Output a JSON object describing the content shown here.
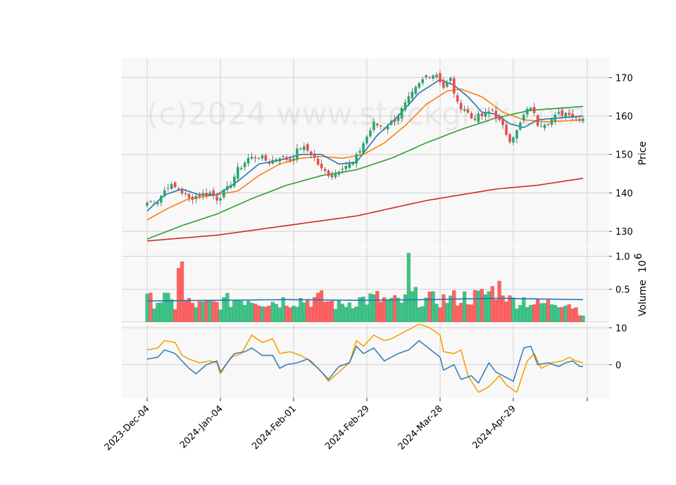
{
  "watermark": "(c)2024 www.stockgrok.com",
  "chart_data": {
    "type": "candlestick",
    "title": "",
    "x_tick_labels": [
      "2023-Dec-04",
      "2024-Jan-04",
      "2024-Feb-01",
      "2024-Feb-29",
      "2024-Mar-28",
      "2024-Apr-29"
    ],
    "x_tick_index": [
      0,
      21,
      42,
      63,
      84,
      105
    ],
    "num_sessions": 126,
    "colors": {
      "up": "#26a96c",
      "down": "#f04a4a",
      "ma10": "#1f77b4",
      "ma20": "#ff7f0e",
      "ma50": "#2ca02c",
      "ma200": "#d62728",
      "vol_ma": "#1f77b4",
      "osc_fast": "#3a7fb4",
      "osc_slow": "#f5a300"
    },
    "price_panel": {
      "ylabel": "Price",
      "ylim": [
        126,
        175
      ],
      "yticks": [
        130,
        140,
        150,
        160,
        170
      ]
    },
    "volume_panel": {
      "ylabel": "Volume",
      "exponent": "10",
      "exponent_power": "6",
      "ylim": [
        0,
        1.05
      ],
      "yticks": [
        0.5,
        1.0
      ],
      "ytick_labels": [
        "0.5",
        "1.0"
      ]
    },
    "oscillator_panel": {
      "ylim": [
        -9,
        11
      ],
      "yticks": [
        0,
        10
      ],
      "ytick_labels": [
        "0",
        "10"
      ]
    },
    "close_keypoints": [
      [
        0,
        137.5
      ],
      [
        3,
        138
      ],
      [
        6,
        142
      ],
      [
        9,
        141
      ],
      [
        12,
        138.5
      ],
      [
        15,
        139.5
      ],
      [
        18,
        140
      ],
      [
        20,
        138.5
      ],
      [
        23,
        141
      ],
      [
        26,
        146
      ],
      [
        29,
        149
      ],
      [
        32,
        149.5
      ],
      [
        35,
        148
      ],
      [
        38,
        149.5
      ],
      [
        41,
        148.5
      ],
      [
        44,
        152
      ],
      [
        47,
        150.5
      ],
      [
        50,
        146
      ],
      [
        53,
        144.5
      ],
      [
        56,
        147
      ],
      [
        59,
        147.5
      ],
      [
        62,
        153
      ],
      [
        65,
        158
      ],
      [
        68,
        157
      ],
      [
        71,
        159
      ],
      [
        74,
        163
      ],
      [
        77,
        167
      ],
      [
        80,
        170.5
      ],
      [
        83,
        171
      ],
      [
        85,
        167.5
      ],
      [
        87,
        169.5
      ],
      [
        89,
        163
      ],
      [
        91,
        162
      ],
      [
        93,
        159.5
      ],
      [
        96,
        160
      ],
      [
        99,
        161.5
      ],
      [
        102,
        157
      ],
      [
        104,
        154
      ],
      [
        106,
        156
      ],
      [
        108,
        160
      ],
      [
        110,
        162.5
      ],
      [
        112,
        158
      ],
      [
        115,
        158.5
      ],
      [
        118,
        160.5
      ],
      [
        121,
        161
      ],
      [
        123,
        159.5
      ],
      [
        125,
        159.5
      ]
    ],
    "ma_keypoints": {
      "ma10": [
        [
          0,
          135.3
        ],
        [
          5,
          139.5
        ],
        [
          10,
          141
        ],
        [
          15,
          139.5
        ],
        [
          20,
          139.5
        ],
        [
          26,
          143
        ],
        [
          32,
          147.5
        ],
        [
          38,
          148.5
        ],
        [
          44,
          150
        ],
        [
          50,
          150
        ],
        [
          55,
          147.5
        ],
        [
          60,
          148
        ],
        [
          66,
          155
        ],
        [
          72,
          160
        ],
        [
          78,
          166
        ],
        [
          84,
          169.5
        ],
        [
          88,
          168
        ],
        [
          92,
          165
        ],
        [
          96,
          161
        ],
        [
          100,
          160.5
        ],
        [
          104,
          158
        ],
        [
          108,
          157
        ],
        [
          112,
          159
        ],
        [
          118,
          159.5
        ],
        [
          125,
          160
        ]
      ],
      "ma20": [
        [
          0,
          133
        ],
        [
          6,
          136
        ],
        [
          12,
          138.5
        ],
        [
          20,
          139.5
        ],
        [
          26,
          140.5
        ],
        [
          32,
          144.5
        ],
        [
          38,
          147.5
        ],
        [
          44,
          149
        ],
        [
          50,
          149.5
        ],
        [
          56,
          149
        ],
        [
          62,
          150
        ],
        [
          68,
          153
        ],
        [
          74,
          157.5
        ],
        [
          80,
          163
        ],
        [
          86,
          166.5
        ],
        [
          90,
          167
        ],
        [
          96,
          165
        ],
        [
          102,
          161
        ],
        [
          108,
          159
        ],
        [
          115,
          158.5
        ],
        [
          125,
          159
        ]
      ],
      "ma50": [
        [
          0,
          128
        ],
        [
          10,
          131.5
        ],
        [
          20,
          134.5
        ],
        [
          30,
          138.5
        ],
        [
          40,
          142
        ],
        [
          50,
          144.5
        ],
        [
          60,
          146
        ],
        [
          70,
          149
        ],
        [
          80,
          153
        ],
        [
          90,
          156.5
        ],
        [
          100,
          159.5
        ],
        [
          110,
          161.5
        ],
        [
          118,
          162
        ],
        [
          125,
          162.5
        ]
      ],
      "ma200": [
        [
          0,
          127.5
        ],
        [
          20,
          129
        ],
        [
          40,
          131.5
        ],
        [
          60,
          134
        ],
        [
          80,
          138
        ],
        [
          100,
          141
        ],
        [
          112,
          142
        ],
        [
          125,
          143.8
        ]
      ]
    },
    "volume_keypoints": [
      [
        0,
        0.32
      ],
      [
        5,
        0.35
      ],
      [
        8,
        0.25
      ],
      [
        9,
        0.82
      ],
      [
        10,
        0.92
      ],
      [
        11,
        0.3
      ],
      [
        15,
        0.25
      ],
      [
        20,
        0.28
      ],
      [
        26,
        0.35
      ],
      [
        30,
        0.36
      ],
      [
        35,
        0.3
      ],
      [
        40,
        0.33
      ],
      [
        45,
        0.34
      ],
      [
        50,
        0.35
      ],
      [
        55,
        0.25
      ],
      [
        60,
        0.33
      ],
      [
        66,
        0.36
      ],
      [
        70,
        0.3
      ],
      [
        74,
        0.32
      ],
      [
        75,
        1.05
      ],
      [
        76,
        0.4
      ],
      [
        80,
        0.33
      ],
      [
        85,
        0.34
      ],
      [
        90,
        0.37
      ],
      [
        95,
        0.38
      ],
      [
        98,
        0.45
      ],
      [
        100,
        0.5
      ],
      [
        102,
        0.55
      ],
      [
        104,
        0.32
      ],
      [
        108,
        0.34
      ],
      [
        112,
        0.26
      ],
      [
        116,
        0.3
      ],
      [
        120,
        0.33
      ],
      [
        125,
        0.12
      ]
    ],
    "volume_ma_keypoints": [
      [
        0,
        0.32
      ],
      [
        20,
        0.33
      ],
      [
        40,
        0.34
      ],
      [
        60,
        0.33
      ],
      [
        80,
        0.34
      ],
      [
        100,
        0.36
      ],
      [
        125,
        0.34
      ]
    ],
    "oscillator_fast_keypoints": [
      [
        0,
        1.5
      ],
      [
        3,
        2
      ],
      [
        5,
        4
      ],
      [
        8,
        3
      ],
      [
        12,
        -1
      ],
      [
        14,
        -2.5
      ],
      [
        17,
        0
      ],
      [
        20,
        1
      ],
      [
        21,
        -2
      ],
      [
        23,
        0.5
      ],
      [
        25,
        3
      ],
      [
        28,
        3.5
      ],
      [
        30,
        4.5
      ],
      [
        33,
        2.5
      ],
      [
        36,
        2.5
      ],
      [
        38,
        -1
      ],
      [
        40,
        0
      ],
      [
        43,
        0.5
      ],
      [
        46,
        1.5
      ],
      [
        49,
        -1
      ],
      [
        52,
        -4
      ],
      [
        55,
        -0.5
      ],
      [
        58,
        0.5
      ],
      [
        60,
        5
      ],
      [
        62,
        3
      ],
      [
        65,
        4.5
      ],
      [
        68,
        1
      ],
      [
        70,
        2
      ],
      [
        72,
        3
      ],
      [
        75,
        4
      ],
      [
        78,
        6.5
      ],
      [
        80,
        5
      ],
      [
        84,
        2
      ],
      [
        85,
        -1.5
      ],
      [
        88,
        0
      ],
      [
        90,
        -4
      ],
      [
        93,
        -3
      ],
      [
        95,
        -5
      ],
      [
        98,
        0.5
      ],
      [
        100,
        -2
      ],
      [
        102,
        -3
      ],
      [
        105,
        -4.5
      ],
      [
        108,
        4.5
      ],
      [
        110,
        5
      ],
      [
        112,
        0
      ],
      [
        115,
        0.5
      ],
      [
        118,
        -0.5
      ],
      [
        120,
        0.5
      ],
      [
        122,
        1
      ],
      [
        124,
        -0.5
      ],
      [
        125,
        -0.5
      ]
    ],
    "oscillator_slow_keypoints": [
      [
        0,
        4
      ],
      [
        3,
        4.5
      ],
      [
        5,
        6.5
      ],
      [
        8,
        6
      ],
      [
        10,
        2.5
      ],
      [
        12,
        1.5
      ],
      [
        15,
        0.5
      ],
      [
        18,
        1
      ],
      [
        20,
        0.5
      ],
      [
        21,
        -2.5
      ],
      [
        24,
        2
      ],
      [
        27,
        3
      ],
      [
        30,
        8
      ],
      [
        33,
        6
      ],
      [
        36,
        7
      ],
      [
        38,
        3
      ],
      [
        41,
        3.5
      ],
      [
        44,
        2.5
      ],
      [
        47,
        1
      ],
      [
        50,
        -2
      ],
      [
        52,
        -4.5
      ],
      [
        55,
        -2
      ],
      [
        58,
        0.5
      ],
      [
        60,
        6.5
      ],
      [
        62,
        5
      ],
      [
        65,
        8
      ],
      [
        68,
        6.5
      ],
      [
        70,
        7
      ],
      [
        73,
        8.5
      ],
      [
        76,
        10
      ],
      [
        78,
        11
      ],
      [
        81,
        10
      ],
      [
        84,
        8
      ],
      [
        85,
        3.5
      ],
      [
        88,
        3
      ],
      [
        90,
        4
      ],
      [
        92,
        -3
      ],
      [
        95,
        -7.5
      ],
      [
        98,
        -6
      ],
      [
        101,
        -3
      ],
      [
        103,
        -5.5
      ],
      [
        106,
        -7.5
      ],
      [
        109,
        1
      ],
      [
        111,
        3
      ],
      [
        113,
        -1
      ],
      [
        116,
        0.5
      ],
      [
        119,
        1
      ],
      [
        121,
        2
      ],
      [
        123,
        1
      ],
      [
        125,
        0.5
      ]
    ]
  }
}
